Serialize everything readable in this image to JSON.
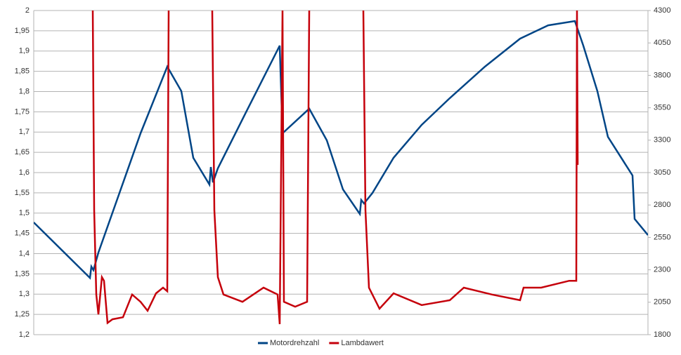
{
  "chart_data": {
    "type": "line",
    "ylim": [
      1.2,
      2
    ],
    "yticks": [
      {
        "value": 1.2,
        "label": "1,2"
      },
      {
        "value": 1.25,
        "label": "1,25"
      },
      {
        "value": 1.3,
        "label": "1,3"
      },
      {
        "value": 1.35,
        "label": "1,35"
      },
      {
        "value": 1.4,
        "label": "1,4"
      },
      {
        "value": 1.45,
        "label": "1,45"
      },
      {
        "value": 1.5,
        "label": "1,5"
      },
      {
        "value": 1.55,
        "label": "1,55"
      },
      {
        "value": 1.6,
        "label": "1,6"
      },
      {
        "value": 1.65,
        "label": "1,65"
      },
      {
        "value": 1.7,
        "label": "1,7"
      },
      {
        "value": 1.75,
        "label": "1,75"
      },
      {
        "value": 1.8,
        "label": "1,8"
      },
      {
        "value": 1.85,
        "label": "1,85"
      },
      {
        "value": 1.9,
        "label": "1,9"
      },
      {
        "value": 1.95,
        "label": "1,95"
      },
      2
    ],
    "y2lim": [
      1800,
      4300
    ],
    "y2ticks": [
      1800,
      2050,
      2300,
      2550,
      2800,
      3050,
      3300,
      3550,
      3800,
      4050,
      4300
    ],
    "xlim": [
      48,
      922
    ],
    "grid": true,
    "legend": "bottom",
    "series": [
      {
        "name": "Motordrehzahl",
        "color": "#004586",
        "axis": "y2",
        "x": [
          48,
          128,
          130,
          133,
          140,
          170,
          200,
          238,
          258,
          275,
          298,
          300,
          303,
          310,
          350,
          398,
          402,
          440,
          465,
          488,
          512,
          514,
          518,
          530,
          560,
          600,
          640,
          690,
          740,
          780,
          818,
          830,
          850,
          865,
          900,
          903,
          922
        ],
        "values": [
          2666,
          2238,
          2325,
          2298,
          2433,
          2893,
          3353,
          3867,
          3678,
          3164,
          2958,
          3093,
          2974,
          3083,
          3515,
          4029,
          3353,
          3543,
          3299,
          2920,
          2731,
          2839,
          2812,
          2893,
          3164,
          3418,
          3624,
          3867,
          4083,
          4186,
          4219,
          4029,
          3678,
          3326,
          3028,
          2693,
          2568
        ]
      },
      {
        "name": "Lambdawert",
        "color": "#c5000b",
        "x": [
          132,
          134,
          137,
          140,
          145,
          148,
          153,
          160,
          175,
          188,
          200,
          210,
          222,
          232,
          238,
          240,
          270,
          302,
          305,
          310,
          318,
          345,
          375,
          395,
          398,
          402,
          404,
          420,
          437,
          440,
          480,
          517,
          520,
          525,
          540,
          560,
          600,
          640,
          660,
          700,
          740,
          745,
          770,
          810,
          820,
          821,
          822
        ],
        "values": [
          2,
          1.507,
          1.299,
          1.25,
          1.342,
          1.333,
          1.229,
          1.238,
          1.243,
          1.299,
          1.281,
          1.259,
          1.302,
          1.316,
          1.307,
          2,
          null,
          2,
          1.507,
          1.342,
          1.299,
          1.281,
          1.316,
          1.299,
          1.226,
          2,
          1.281,
          1.269,
          1.281,
          2,
          null,
          2,
          1.507,
          1.316,
          1.264,
          1.302,
          1.273,
          1.285,
          1.316,
          1.299,
          1.285,
          1.316,
          1.316,
          1.333,
          1.333,
          2,
          1.619
        ]
      }
    ]
  }
}
